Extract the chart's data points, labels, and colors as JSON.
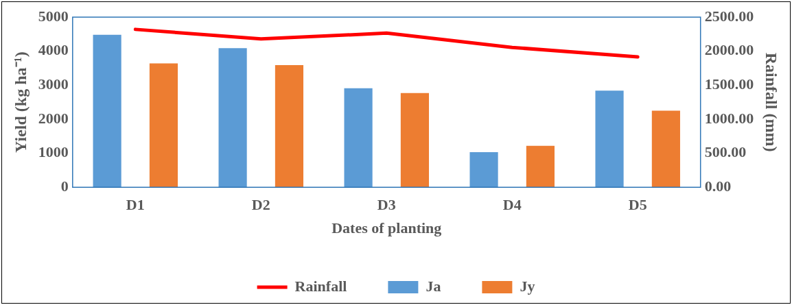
{
  "chart_data": {
    "type": "bar",
    "xlabel": "Dates of planting",
    "ylabel": "Yield (kg ha⁻¹)",
    "y2label": "Rainfall (mm)",
    "categories": [
      "D1",
      "D2",
      "D3",
      "D4",
      "D5"
    ],
    "series": [
      {
        "name": "Ja",
        "color": "#5b9bd5",
        "values": [
          4480,
          4090,
          2910,
          1030,
          2840
        ]
      },
      {
        "name": "Jy",
        "color": "#ed7d31",
        "values": [
          3640,
          3590,
          2770,
          1220,
          2250
        ]
      },
      {
        "name": "Rainfall",
        "type": "line",
        "axis": "y2",
        "color": "#ff0000",
        "values": [
          2320,
          2180,
          2265,
          2055,
          1915
        ]
      }
    ],
    "ylim": [
      0,
      5000
    ],
    "yticks": [
      0,
      1000,
      2000,
      3000,
      4000,
      5000
    ],
    "y2lim": [
      0,
      2500
    ],
    "y2ticks": [
      {
        "value": 0,
        "label": "0.00"
      },
      {
        "value": 500,
        "label": "500.00"
      },
      {
        "value": 1000,
        "label": "1000.00"
      },
      {
        "value": 1500,
        "label": "1500.00"
      },
      {
        "value": 2000,
        "label": "2000.00"
      },
      {
        "value": 2500,
        "label": "2500.00"
      }
    ],
    "grid": false,
    "legend": "bottom",
    "marker": "none",
    "line_style": "solid"
  }
}
